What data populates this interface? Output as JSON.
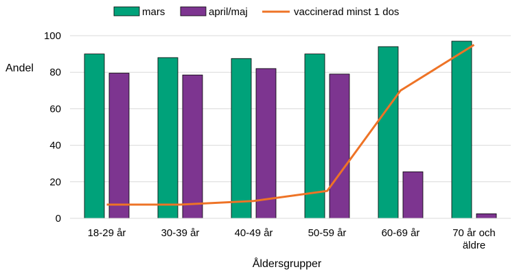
{
  "chart_data": {
    "type": "bar",
    "title": "",
    "xlabel": "Åldersgrupper",
    "ylabel": "Andel",
    "ylim": [
      0,
      100
    ],
    "yticks": [
      0,
      20,
      40,
      60,
      80,
      100
    ],
    "grid": true,
    "legend_position": "top",
    "categories": [
      [
        "18-29 år"
      ],
      [
        "30-39 år"
      ],
      [
        "40-49 år"
      ],
      [
        "50-59 år"
      ],
      [
        "60-69 år"
      ],
      [
        "70 år och",
        "äldre"
      ]
    ],
    "series": [
      {
        "name": "mars",
        "kind": "bar",
        "color": "#00a27a",
        "values": [
          90,
          88,
          87.5,
          90,
          94,
          97
        ]
      },
      {
        "name": "april/maj",
        "kind": "bar",
        "color": "#7d3590",
        "values": [
          79.5,
          78.5,
          82,
          79,
          25.5,
          2.5
        ]
      },
      {
        "name": "vaccinerad minst 1 dos",
        "kind": "line",
        "color": "#ee7326",
        "values": [
          7.5,
          7.5,
          9.5,
          15,
          70,
          95
        ]
      }
    ]
  }
}
